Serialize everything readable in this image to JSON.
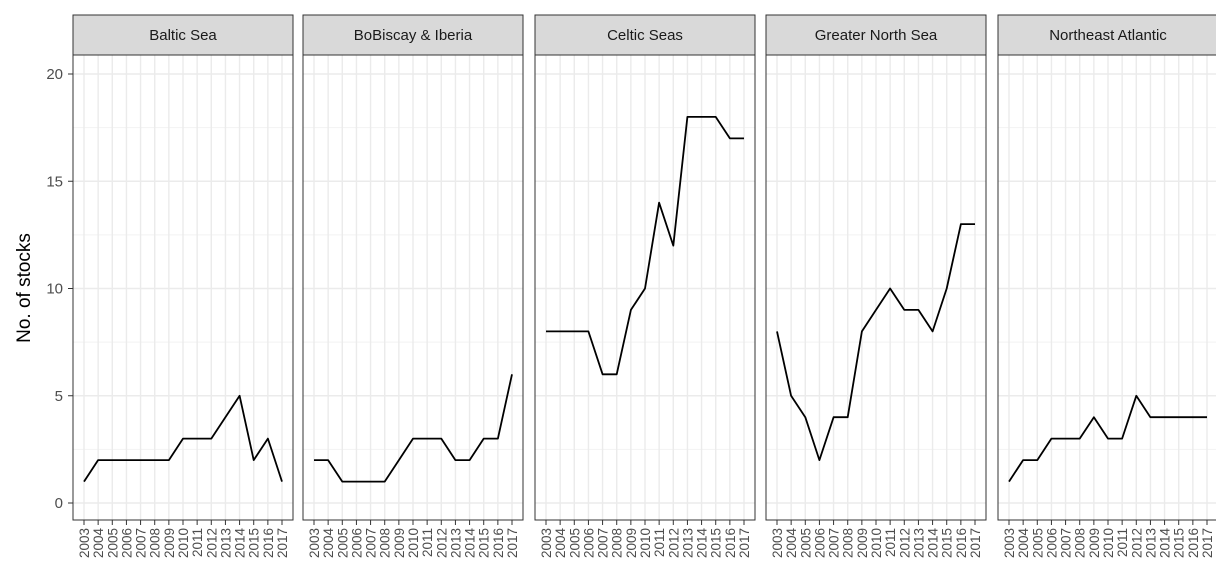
{
  "chart_data": {
    "type": "line",
    "layout": "facets",
    "ylabel": "No. of stocks",
    "xlabel": "",
    "xlim": [
      2003,
      2017
    ],
    "ylim": [
      0,
      20
    ],
    "yticks": [
      "0",
      "5",
      "10",
      "15",
      "20"
    ],
    "x": [
      2003,
      2004,
      2005,
      2006,
      2007,
      2008,
      2009,
      2010,
      2011,
      2012,
      2013,
      2014,
      2015,
      2016,
      2017
    ],
    "xtick_labels": [
      "2003",
      "2004",
      "2005",
      "2006",
      "2007",
      "2008",
      "2009",
      "2010",
      "2011",
      "2012",
      "2013",
      "2014",
      "2015",
      "2016",
      "2017"
    ],
    "grid": true,
    "line_color": "#000000",
    "facets": [
      {
        "title": "Baltic Sea",
        "values": [
          1,
          2,
          2,
          2,
          2,
          2,
          2,
          3,
          3,
          3,
          4,
          5,
          2,
          3,
          1
        ]
      },
      {
        "title": "BoBiscay & Iberia",
        "values": [
          2,
          2,
          1,
          1,
          1,
          1,
          2,
          3,
          3,
          3,
          2,
          2,
          3,
          3,
          6
        ]
      },
      {
        "title": "Celtic Seas",
        "values": [
          8,
          8,
          8,
          8,
          6,
          6,
          9,
          10,
          14,
          12,
          18,
          18,
          18,
          17,
          17
        ]
      },
      {
        "title": "Greater North Sea",
        "values": [
          8,
          5,
          4,
          2,
          4,
          4,
          8,
          9,
          10,
          9,
          9,
          8,
          10,
          13,
          13
        ]
      },
      {
        "title": "Northeast Atlantic",
        "values": [
          1,
          2,
          2,
          3,
          3,
          3,
          4,
          3,
          3,
          5,
          4,
          4,
          4,
          4,
          4
        ]
      }
    ]
  }
}
